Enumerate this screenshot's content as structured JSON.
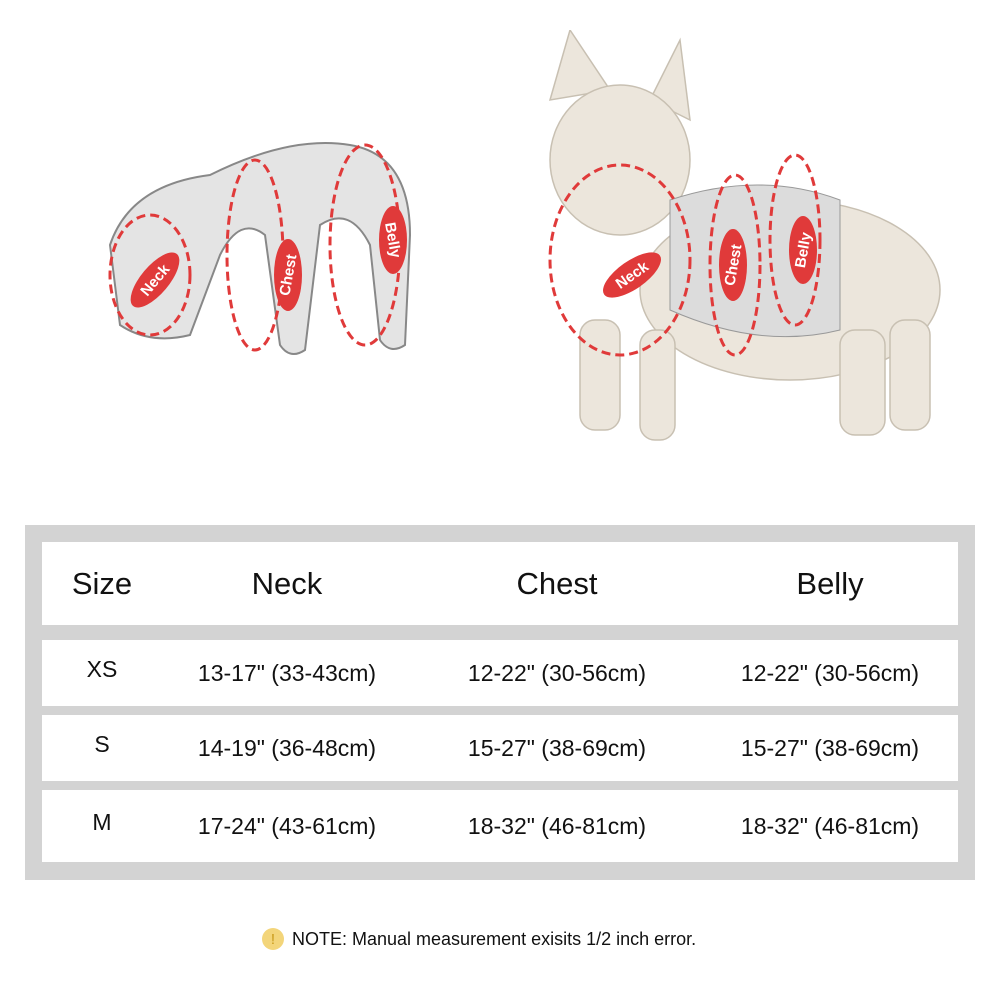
{
  "illustration_labels": {
    "neck": "Neck",
    "chest": "Chest",
    "belly": "Belly"
  },
  "table": {
    "headers": [
      "Size",
      "Neck",
      "Chest",
      "Belly"
    ],
    "rows": [
      [
        "XS",
        "13-17\" (33-43cm)",
        "12-22\" (30-56cm)",
        "12-22\" (30-56cm)"
      ],
      [
        "S",
        "14-19\" (36-48cm)",
        "15-27\" (38-69cm)",
        "15-27\" (38-69cm)"
      ],
      [
        "M",
        "17-24\" (43-61cm)",
        "18-32\" (46-81cm)",
        "18-32\" (46-81cm)"
      ]
    ]
  },
  "note": {
    "icon": "exclamation-icon",
    "text": "NOTE: Manual measurement exisits 1/2 inch error."
  },
  "colors": {
    "accent": "#e03a3a",
    "frame": "#d3d3d3",
    "warn": "#f3d57a"
  }
}
